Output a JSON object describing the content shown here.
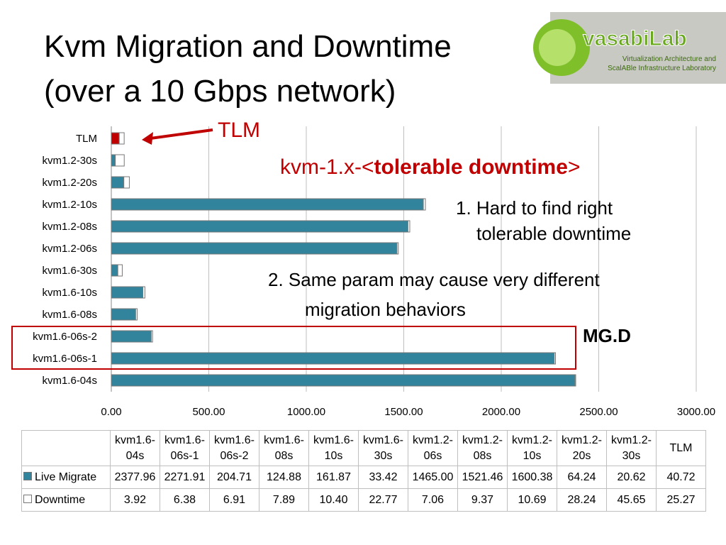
{
  "title_lines": [
    "Kvm Migration and Downtime",
    "(over a 10 Gbps network)"
  ],
  "logo": {
    "name": "vasabiLab",
    "subtitle_lines": [
      "Virtualization Architecture and",
      "ScalABle Infrastructure Laboratory"
    ]
  },
  "annotations": {
    "arrow_label": "TLM",
    "param": [
      "kvm-1.x-<",
      "tolerable downtime",
      ">"
    ],
    "note1": [
      "1. Hard to find right",
      "tolerable downtime"
    ],
    "note2": [
      "2. Same param may cause very different",
      "migration behaviors"
    ],
    "highlight": "MG.D"
  },
  "chart_data": {
    "type": "stacked-hbar",
    "categories": [
      "kvm1.6-04s",
      "kvm1.6-06s-1",
      "kvm1.6-06s-2",
      "kvm1.6-08s",
      "kvm1.6-10s",
      "kvm1.6-30s",
      "kvm1.2-06s",
      "kvm1.2-08s",
      "kvm1.2-10s",
      "kvm1.2-20s",
      "kvm1.2-30s",
      "TLM"
    ],
    "series": [
      {
        "name": "Live Migrate",
        "color": "#31849b",
        "values": [
          2377.96,
          2271.91,
          204.71,
          124.88,
          161.87,
          33.42,
          1465.0,
          1521.46,
          1600.38,
          64.24,
          20.62,
          40.72
        ],
        "value_labels": [
          "2377.96",
          "2271.91",
          "204.71",
          "124.88",
          "161.87",
          "33.42",
          "1465.00",
          "1521.46",
          "1600.38",
          "64.24",
          "20.62",
          "40.72"
        ]
      },
      {
        "name": "Downtime",
        "color": "#ffffff",
        "values": [
          3.92,
          6.38,
          6.91,
          7.89,
          10.4,
          22.77,
          7.06,
          9.37,
          10.69,
          28.24,
          45.65,
          25.27
        ],
        "value_labels": [
          "3.92",
          "6.38",
          "6.91",
          "7.89",
          "10.40",
          "22.77",
          "7.06",
          "9.37",
          "10.69",
          "28.24",
          "45.65",
          "25.27"
        ]
      }
    ],
    "xlim": [
      0,
      3000
    ],
    "xticks": [
      {
        "value": 0,
        "label": "0.00"
      },
      {
        "value": 500,
        "label": "500.00"
      },
      {
        "value": 1000,
        "label": "1000.00"
      },
      {
        "value": 1500,
        "label": "1500.00"
      },
      {
        "value": 2000,
        "label": "2000.00"
      },
      {
        "value": 2500,
        "label": "2500.00"
      },
      {
        "value": 3000,
        "label": "3000.00"
      }
    ],
    "grid": true,
    "tlm_bar_color": "#c00000"
  }
}
